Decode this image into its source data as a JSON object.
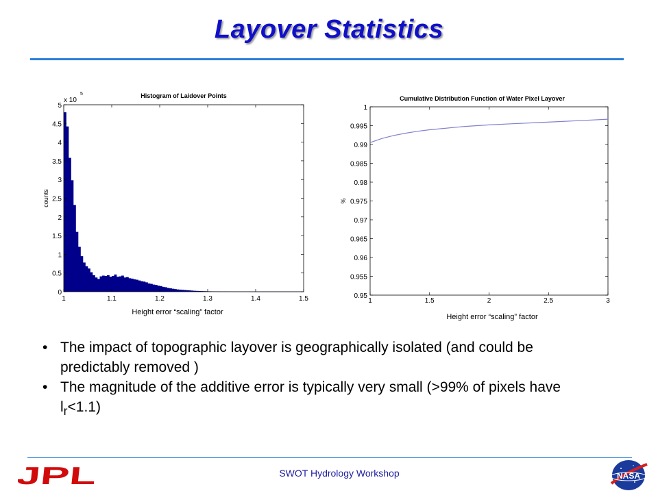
{
  "slide": {
    "title": "Layover Statistics",
    "footer": "SWOT Hydrology Workshop",
    "logo_left_text": "JPL",
    "logo_right_text": "NASA"
  },
  "bullets": [
    {
      "text": "The impact of topographic layover is geographically isolated (and could be predictably removed )"
    },
    {
      "text_before": "The magnitude of the additive error is typically very small (>99% of pixels have l",
      "subscript": "r",
      "text_after": "<1.1)"
    }
  ],
  "bullet_symbol": "•",
  "chart_data": [
    {
      "type": "bar",
      "title": "Histogram of Laidover Points",
      "xlabel": "Height error “scaling” factor",
      "ylabel": "counts",
      "y_multiplier_label": "x 10",
      "y_multiplier_exponent": "5",
      "xlim": [
        1.0,
        1.5
      ],
      "ylim": [
        0,
        5
      ],
      "xticks": [
        "1",
        "1.1",
        "1.2",
        "1.3",
        "1.4",
        "1.5"
      ],
      "yticks": [
        "0",
        "0.5",
        "1",
        "1.5",
        "2",
        "2.5",
        "3",
        "3.5",
        "4",
        "4.5",
        "5"
      ],
      "bin_start": 1.0,
      "bin_width": 0.005,
      "values": [
        4.8,
        4.42,
        3.58,
        2.98,
        2.32,
        1.6,
        1.2,
        0.95,
        0.78,
        0.68,
        0.62,
        0.52,
        0.44,
        0.38,
        0.34,
        0.41,
        0.43,
        0.42,
        0.44,
        0.4,
        0.42,
        0.46,
        0.4,
        0.41,
        0.43,
        0.38,
        0.39,
        0.36,
        0.35,
        0.33,
        0.32,
        0.3,
        0.28,
        0.27,
        0.25,
        0.22,
        0.21,
        0.19,
        0.18,
        0.16,
        0.15,
        0.13,
        0.12,
        0.1,
        0.09,
        0.08,
        0.07,
        0.06,
        0.055,
        0.05,
        0.045,
        0.04,
        0.035,
        0.03,
        0.025,
        0.022,
        0.02,
        0.017,
        0.015,
        0.013,
        0.011,
        0.01,
        0.009,
        0.008,
        0.007,
        0.006,
        0.005,
        0.005,
        0.004,
        0.004,
        0.003,
        0.003,
        0.003,
        0.002,
        0.002,
        0.002,
        0.002,
        0.001,
        0.001,
        0.001,
        0.001,
        0.001,
        0.001,
        0.001,
        0.001,
        0.001,
        0.001,
        0.001,
        0.001,
        0.001,
        0.001,
        0.001,
        0.001,
        0.001,
        0.001,
        0.001,
        0.001,
        0.001,
        0.001,
        0.001
      ],
      "bar_color": "#00008b",
      "grid": false
    },
    {
      "type": "line",
      "title": "Cumulative Distribution Function of Water Pixel Layover",
      "xlabel": "Height error “scaling” factor",
      "ylabel": "%",
      "xlim": [
        1.0,
        3.0
      ],
      "ylim": [
        0.95,
        1.0
      ],
      "xticks": [
        "1",
        "1.5",
        "2",
        "2.5",
        "3"
      ],
      "yticks": [
        "0.95",
        "0.955",
        "0.96",
        "0.965",
        "0.97",
        "0.975",
        "0.98",
        "0.985",
        "0.99",
        "0.995",
        "1"
      ],
      "x": [
        1.0,
        1.1,
        1.2,
        1.3,
        1.4,
        1.5,
        1.6,
        1.7,
        1.8,
        1.9,
        2.0,
        2.2,
        2.4,
        2.6,
        2.8,
        3.0
      ],
      "y": [
        0.9905,
        0.9916,
        0.9924,
        0.993,
        0.9935,
        0.9939,
        0.9942,
        0.9945,
        0.9948,
        0.995,
        0.9952,
        0.9955,
        0.9958,
        0.9961,
        0.9964,
        0.9967
      ],
      "line_color": "#8080d0",
      "grid": false
    }
  ]
}
